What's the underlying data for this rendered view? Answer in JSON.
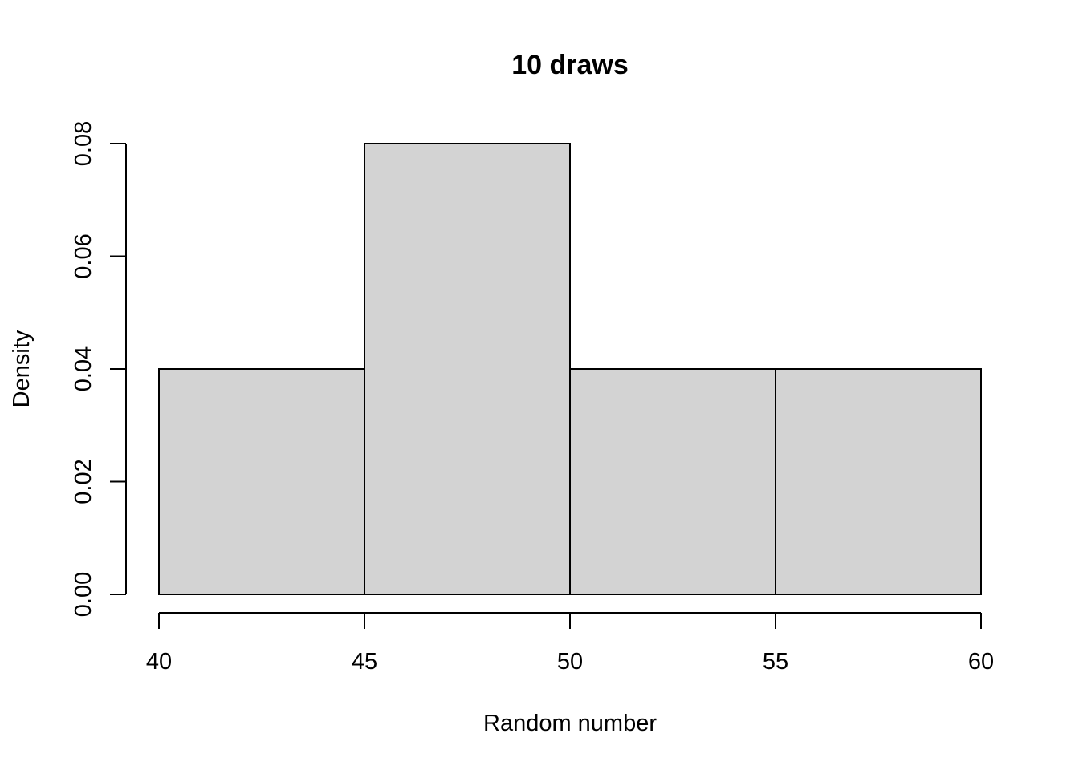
{
  "chart_data": {
    "type": "bar",
    "subtype": "histogram",
    "title": "10 draws",
    "xlabel": "Random number",
    "ylabel": "Density",
    "bins": [
      {
        "start": 40,
        "end": 45,
        "value": 0.04
      },
      {
        "start": 45,
        "end": 50,
        "value": 0.08
      },
      {
        "start": 50,
        "end": 55,
        "value": 0.04
      },
      {
        "start": 55,
        "end": 60,
        "value": 0.04
      }
    ],
    "xlim": [
      40,
      60
    ],
    "ylim": [
      0,
      0.08
    ],
    "x_ticks": [
      "40",
      "45",
      "50",
      "55",
      "60"
    ],
    "y_ticks": [
      "0.00",
      "0.02",
      "0.04",
      "0.06",
      "0.08"
    ],
    "grid": false,
    "bar_fill": "#d3d3d3",
    "bar_stroke": "#000000"
  }
}
